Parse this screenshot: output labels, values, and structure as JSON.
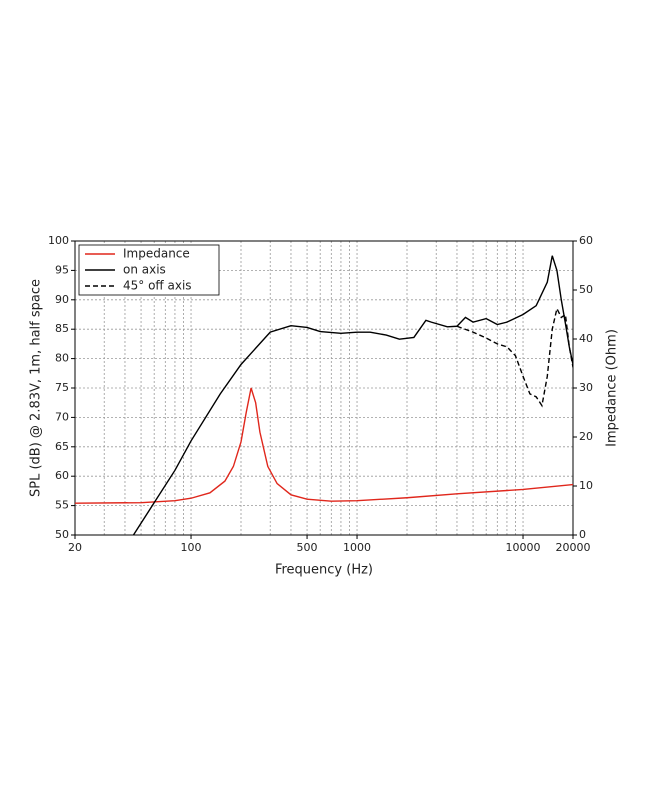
{
  "chart_data": {
    "type": "line",
    "xlabel": "Frequency (Hz)",
    "ylabel": "SPL (dB) @ 2.83V, 1m, half space",
    "y2label": "Impedance (Ohm)",
    "xscale": "log",
    "xlim": [
      20,
      20000
    ],
    "xticks": [
      20,
      100,
      500,
      1000,
      10000,
      20000
    ],
    "xgrid": [
      30,
      40,
      50,
      60,
      70,
      80,
      90,
      100,
      200,
      300,
      400,
      500,
      600,
      700,
      800,
      900,
      1000,
      2000,
      3000,
      4000,
      5000,
      6000,
      7000,
      8000,
      9000,
      10000
    ],
    "ylim": [
      50,
      100
    ],
    "yticks": [
      50,
      55,
      60,
      65,
      70,
      75,
      80,
      85,
      90,
      95,
      100
    ],
    "y2lim": [
      0,
      60
    ],
    "y2ticks": [
      0,
      10,
      20,
      30,
      40,
      50,
      60
    ],
    "grid": true,
    "legend": "top-left",
    "series": [
      {
        "name": "Impedance",
        "color": "#e0271c",
        "dash": "solid",
        "axis": "y2",
        "x": [
          20,
          50,
          80,
          100,
          130,
          160,
          180,
          200,
          215,
          230,
          245,
          260,
          290,
          330,
          400,
          500,
          700,
          1000,
          2000,
          4000,
          10000,
          20000
        ],
        "values": [
          6.5,
          6.6,
          7.0,
          7.5,
          8.6,
          11,
          14,
          19,
          25,
          30,
          27,
          21,
          14,
          10.5,
          8.2,
          7.3,
          6.9,
          7.0,
          7.6,
          8.4,
          9.3,
          10.3
        ]
      },
      {
        "name": "on axis",
        "color": "#000000",
        "dash": "solid",
        "x": [
          45,
          60,
          80,
          100,
          150,
          200,
          300,
          400,
          500,
          600,
          800,
          1000,
          1200,
          1500,
          1800,
          2200,
          2600,
          2800,
          3500,
          4000,
          4500,
          5000,
          6000,
          7000,
          8000,
          10000,
          12000,
          14000,
          15000,
          16000,
          17000,
          18000,
          19000,
          20000
        ],
        "values": [
          50,
          55.5,
          61,
          66,
          74,
          79,
          84.5,
          85.6,
          85.3,
          84.6,
          84.3,
          84.5,
          84.5,
          84,
          83.3,
          83.6,
          86.5,
          86.2,
          85.4,
          85.5,
          87,
          86.2,
          86.8,
          85.8,
          86.2,
          87.5,
          89,
          93,
          97.5,
          95,
          90,
          86,
          82,
          79
        ]
      },
      {
        "name": "45° off axis",
        "color": "#000000",
        "dash": "dashed",
        "x": [
          4000,
          5000,
          6000,
          7000,
          8000,
          9000,
          10000,
          11000,
          12000,
          13000,
          14000,
          15000,
          16000,
          17000,
          18000,
          19000,
          20000
        ],
        "values": [
          85.5,
          84.5,
          83.5,
          82.5,
          82,
          80.5,
          77,
          74,
          73.5,
          72,
          77,
          85,
          88.5,
          87,
          87.5,
          82,
          78.5
        ]
      }
    ]
  }
}
